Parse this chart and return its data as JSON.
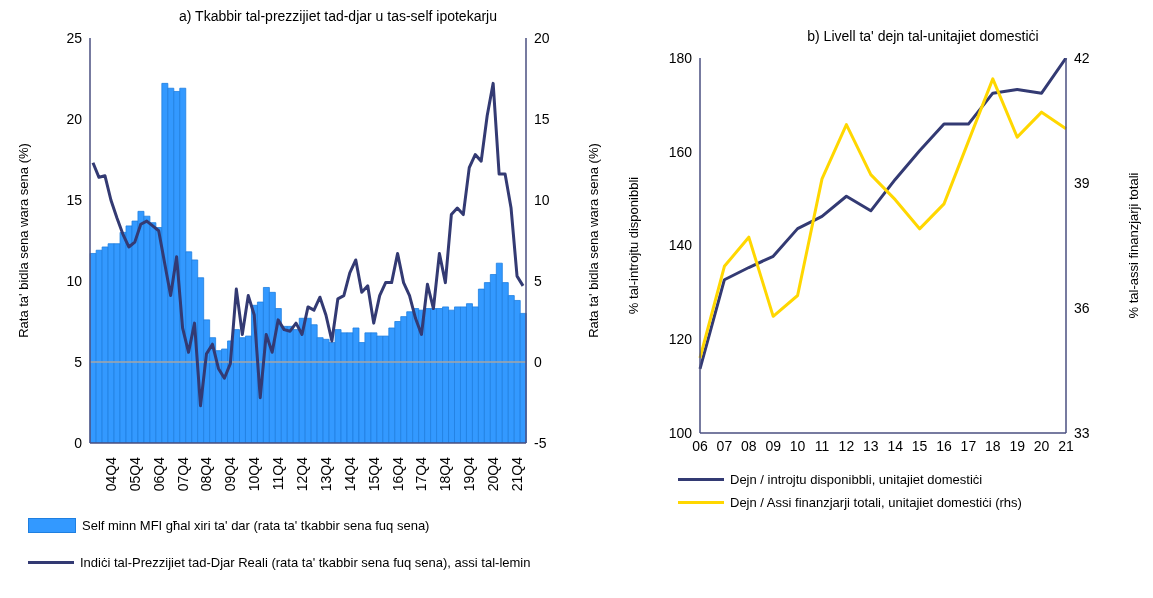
{
  "chart_data": [
    {
      "type": "bar",
      "title": "a) Tkabbir tal-prezzijiet tad-djar u tas-self ipotekarju",
      "ylabel": "Rata ta' bidla sena wara sena (%)",
      "y2label": "Rata ta' bidla sena wara sena (%)",
      "categories": [
        null,
        null,
        null,
        "04Q4",
        null,
        null,
        null,
        "05Q4",
        null,
        null,
        null,
        "06Q4",
        null,
        null,
        null,
        "07Q4",
        null,
        null,
        null,
        "08Q4",
        null,
        null,
        null,
        "09Q4",
        null,
        null,
        null,
        "10Q4",
        null,
        null,
        null,
        "11Q4",
        null,
        null,
        null,
        "12Q4",
        null,
        null,
        null,
        "13Q4",
        null,
        null,
        null,
        "14Q4",
        null,
        null,
        null,
        "15Q4",
        null,
        null,
        null,
        "16Q4",
        null,
        null,
        null,
        "17Q4",
        null,
        null,
        null,
        "18Q4",
        null,
        null,
        null,
        "19Q4",
        null,
        null,
        null,
        "20Q4",
        null,
        null,
        null,
        "21Q4",
        null
      ],
      "series": [
        {
          "name": "Self minn MFI għal xiri ta' dar (rata ta' tkabbir sena fuq sena)",
          "color": "#3399ff",
          "values": [
            11.7,
            11.9,
            12.1,
            12.3,
            12.3,
            13.0,
            13.4,
            13.7,
            14.3,
            14.0,
            13.6,
            13.3,
            22.2,
            21.9,
            21.7,
            21.9,
            11.8,
            11.3,
            10.2,
            7.6,
            6.5,
            5.7,
            5.8,
            6.3,
            7.0,
            6.5,
            6.6,
            8.5,
            8.7,
            9.6,
            9.3,
            8.3,
            7.2,
            7.2,
            7.0,
            7.7,
            7.7,
            7.3,
            6.5,
            6.4,
            6.2,
            7.0,
            6.8,
            6.8,
            7.1,
            6.2,
            6.8,
            6.8,
            6.6,
            6.6,
            7.1,
            7.5,
            7.8,
            8.1,
            8.3,
            8.2,
            8.3,
            8.3,
            8.3,
            8.4,
            8.2,
            8.4,
            8.4,
            8.6,
            8.4,
            9.5,
            9.9,
            10.4,
            11.1,
            9.9,
            9.1,
            8.8,
            8.0
          ]
        },
        {
          "name": "Indiċi tal-Prezzijiet tad-Djar Reali (rata ta' tkabbir sena fuq sena), assi tal-lemin",
          "type": "line",
          "axis": "y2",
          "color": "#333a73",
          "values": [
            12.3,
            11.4,
            11.5,
            10.0,
            8.9,
            7.9,
            7.1,
            7.4,
            8.5,
            8.7,
            8.4,
            8.1,
            6.1,
            4.1,
            6.5,
            2.1,
            0.6,
            2.4,
            -2.7,
            0.5,
            1.1,
            -0.4,
            -1.0,
            -0.1,
            4.5,
            1.7,
            4.1,
            2.9,
            -2.2,
            1.7,
            0.6,
            2.6,
            2.0,
            1.9,
            2.4,
            1.7,
            3.4,
            3.2,
            4.0,
            2.9,
            1.3,
            3.9,
            4.1,
            5.5,
            6.3,
            4.3,
            4.7,
            2.4,
            4.1,
            4.9,
            4.9,
            6.7,
            4.9,
            4.1,
            2.7,
            1.7,
            4.8,
            3.3,
            6.7,
            4.9,
            9.1,
            9.5,
            9.1,
            12.0,
            12.8,
            12.4,
            15.2,
            17.2,
            11.6,
            11.6,
            9.5,
            5.3,
            4.7
          ]
        }
      ],
      "ylim": [
        0,
        25
      ],
      "yticks": [
        0,
        5,
        10,
        15,
        20,
        25
      ],
      "y2lim": [
        -5,
        20
      ],
      "y2ticks": [
        -5,
        0,
        5,
        10,
        15,
        20
      ],
      "ref_lines": [
        {
          "axis": "y2",
          "value": 0,
          "color": "#a6a6a6"
        }
      ],
      "legend": "bottom",
      "marker": "none"
    },
    {
      "type": "line",
      "title": "b) Livell ta' dejn tal-unitajiet domestiċi",
      "ylabel": "% tal-introjtu disponibbli",
      "y2label": "% tal-assi finanzjarji totali",
      "categories": [
        "06",
        "07",
        "08",
        "09",
        "10",
        "11",
        "12",
        "13",
        "14",
        "15",
        "16",
        "17",
        "18",
        "19",
        "20",
        "21"
      ],
      "series": [
        {
          "name": "Dejn / introjtu disponibbli, unitajiet domestiċi",
          "color": "#333a73",
          "values": [
            113.7,
            132.7,
            135.3,
            137.7,
            143.6,
            146.2,
            150.5,
            147.4,
            154.1,
            160.2,
            165.9,
            165.9,
            172.5,
            173.3,
            172.5,
            180.0
          ]
        },
        {
          "name": "Dejn / Assi finanzjarji totali, unitajiet domestiċi (rhs)",
          "axis": "y2",
          "color": "#ffd700",
          "values": [
            34.8,
            37.0,
            37.7,
            35.8,
            36.3,
            39.1,
            40.4,
            39.2,
            38.6,
            37.9,
            38.5,
            40.0,
            41.5,
            40.1,
            40.7,
            40.3
          ]
        }
      ],
      "ylim": [
        100,
        180
      ],
      "yticks": [
        100,
        120,
        140,
        160,
        180
      ],
      "y2lim": [
        33,
        42
      ],
      "y2ticks": [
        33,
        36,
        39,
        42
      ],
      "legend": "bottom",
      "marker": "none"
    }
  ]
}
